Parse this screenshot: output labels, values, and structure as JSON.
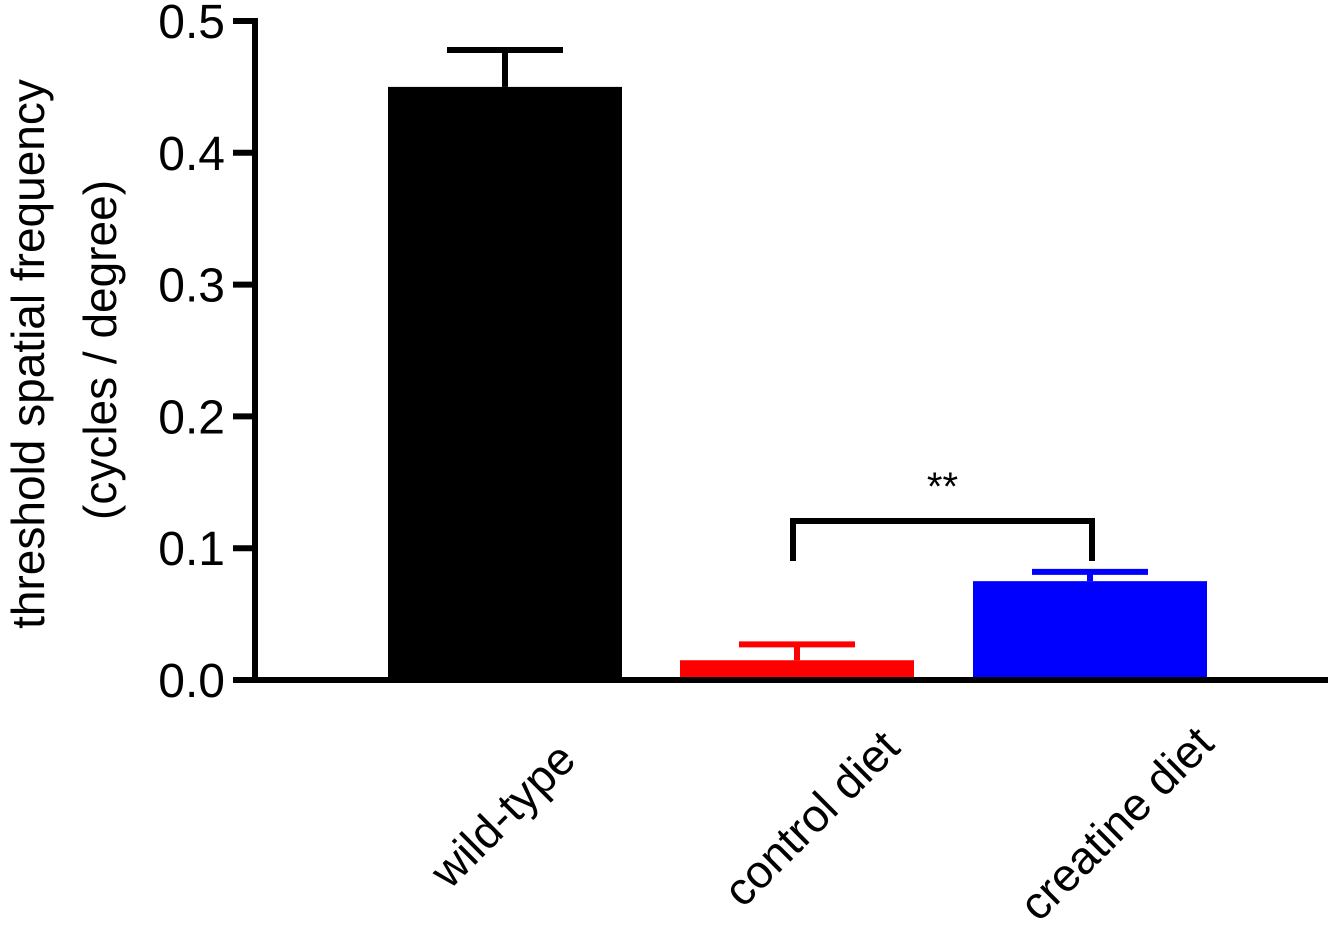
{
  "chart_data": {
    "type": "bar",
    "categories": [
      "wild-type",
      "control diet",
      "creatine diet"
    ],
    "values": [
      0.45,
      0.015,
      0.075
    ],
    "errors": [
      0.028,
      0.012,
      0.007
    ],
    "colors": [
      "#000000",
      "#ff0000",
      "#0000ff"
    ],
    "ylabel_line1": "threshold spatial frequency",
    "ylabel_line2": "(cycles / degree)",
    "xlabel": "",
    "title": "",
    "ylim": [
      0,
      0.5
    ],
    "yticks": [
      0.0,
      0.1,
      0.2,
      0.3,
      0.4,
      0.5
    ],
    "ytick_labels": [
      "0.0",
      "0.1",
      "0.2",
      "0.3",
      "0.4",
      "0.5"
    ],
    "grid": false,
    "legend": "none",
    "significance": {
      "from": "control diet",
      "to": "creatine diet",
      "label": "**"
    }
  }
}
